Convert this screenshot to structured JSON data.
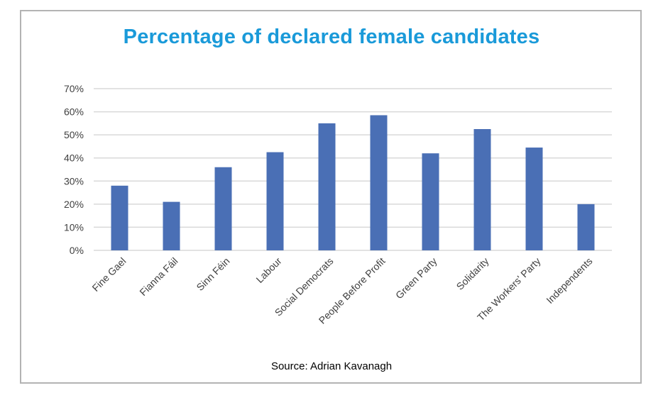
{
  "source_label": "Source: Adrian Kavanagh",
  "chart_data": {
    "type": "bar",
    "title": "Percentage of declared female candidates",
    "categories": [
      "Fine Gael",
      "Fianna Fáil",
      "Sinn Féin",
      "Labour",
      "Social Democrats",
      "People Before Profit",
      "Green Party",
      "Solidarity",
      "The Workers' Party",
      "Independents"
    ],
    "values": [
      28,
      21,
      36,
      42.5,
      55,
      58.5,
      42,
      52.5,
      44.5,
      20
    ],
    "ylim": [
      0,
      70
    ],
    "yticks": [
      0,
      10,
      20,
      30,
      40,
      50,
      60,
      70
    ],
    "ytick_labels": [
      "0%",
      "10%",
      "20%",
      "30%",
      "40%",
      "50%",
      "60%",
      "70%"
    ],
    "bar_color": "#4a6fb5",
    "grid": true,
    "legend": "none"
  }
}
